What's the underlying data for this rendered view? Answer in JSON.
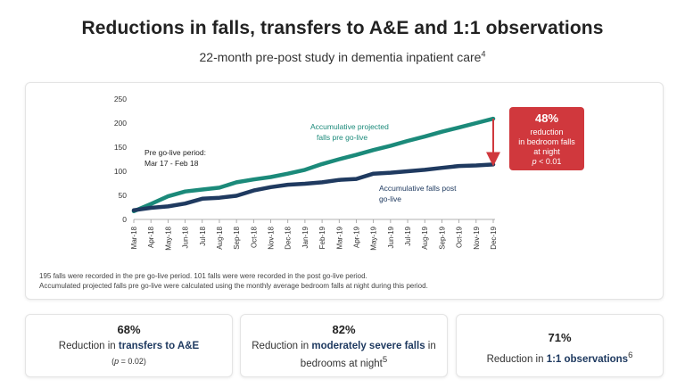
{
  "header": {
    "title": "Reductions in falls, transfers to A&E and 1:1 observations",
    "subtitle": "22-month pre-post study in dementia inpatient care",
    "subtitle_ref": "4"
  },
  "chart_data": {
    "type": "line",
    "x": [
      "Mar-18",
      "Apr-18",
      "May-18",
      "Jun-18",
      "Jul-18",
      "Aug-18",
      "Sep-18",
      "Oct-18",
      "Nov-18",
      "Dec-18",
      "Jan-19",
      "Feb-19",
      "Mar-19",
      "Apr-19",
      "May-19",
      "Jun-19",
      "Jul-19",
      "Aug-19",
      "Sep-19",
      "Oct-19",
      "Nov-19",
      "Dec-19"
    ],
    "ylim": [
      0,
      250
    ],
    "yticks": [
      0,
      50,
      100,
      150,
      200,
      250
    ],
    "series": [
      {
        "name": "Accumulative projected falls pre go-live",
        "color": "#1b8a7a",
        "values": [
          17,
          32,
          48,
          58,
          62,
          66,
          77,
          83,
          88,
          95,
          103,
          115,
          125,
          134,
          144,
          153,
          163,
          172,
          182,
          191,
          200,
          209
        ]
      },
      {
        "name": "Accumulative falls post go-live",
        "color": "#1f3a60",
        "values": [
          19,
          24,
          27,
          33,
          43,
          45,
          49,
          60,
          67,
          72,
          74,
          77,
          82,
          84,
          95,
          97,
          100,
          103,
          107,
          111,
          112,
          114
        ]
      }
    ],
    "annotations": {
      "pre_period_line1": "Pre go-live period:",
      "pre_period_line2": "Mar 17 - Feb 18",
      "projected_line1": "Accumulative projected",
      "projected_line2": "falls pre go-live",
      "post_line1": "Accumulative falls post",
      "post_line2": "go-live"
    }
  },
  "callout": {
    "percent": "48%",
    "line1": "reduction",
    "line2": "in bedroom falls",
    "line3": "at night",
    "p_label": "p",
    "p_value": "< 0.01",
    "color": "#d0383d"
  },
  "footnote": {
    "line1": "195 falls were recorded in the pre go-live period. 101 falls were were recorded in the post go-live period.",
    "line2": "Accumulated projected falls pre go-live were calculated using the monthly average bedroom falls at night during this period."
  },
  "stats": [
    {
      "value": "68%",
      "prefix": "Reduction in ",
      "bold": "transfers to A&E",
      "note_label": "p",
      "note_value": " = 0.02)"
    },
    {
      "value": "82%",
      "prefix": "Reduction in ",
      "bold": "moderately severe falls",
      "suffix": " in",
      "line2": "bedrooms at night",
      "ref": "5"
    },
    {
      "value": "71%",
      "prefix": "Reduction in ",
      "bold": "1:1 observations",
      "ref": "6"
    }
  ]
}
